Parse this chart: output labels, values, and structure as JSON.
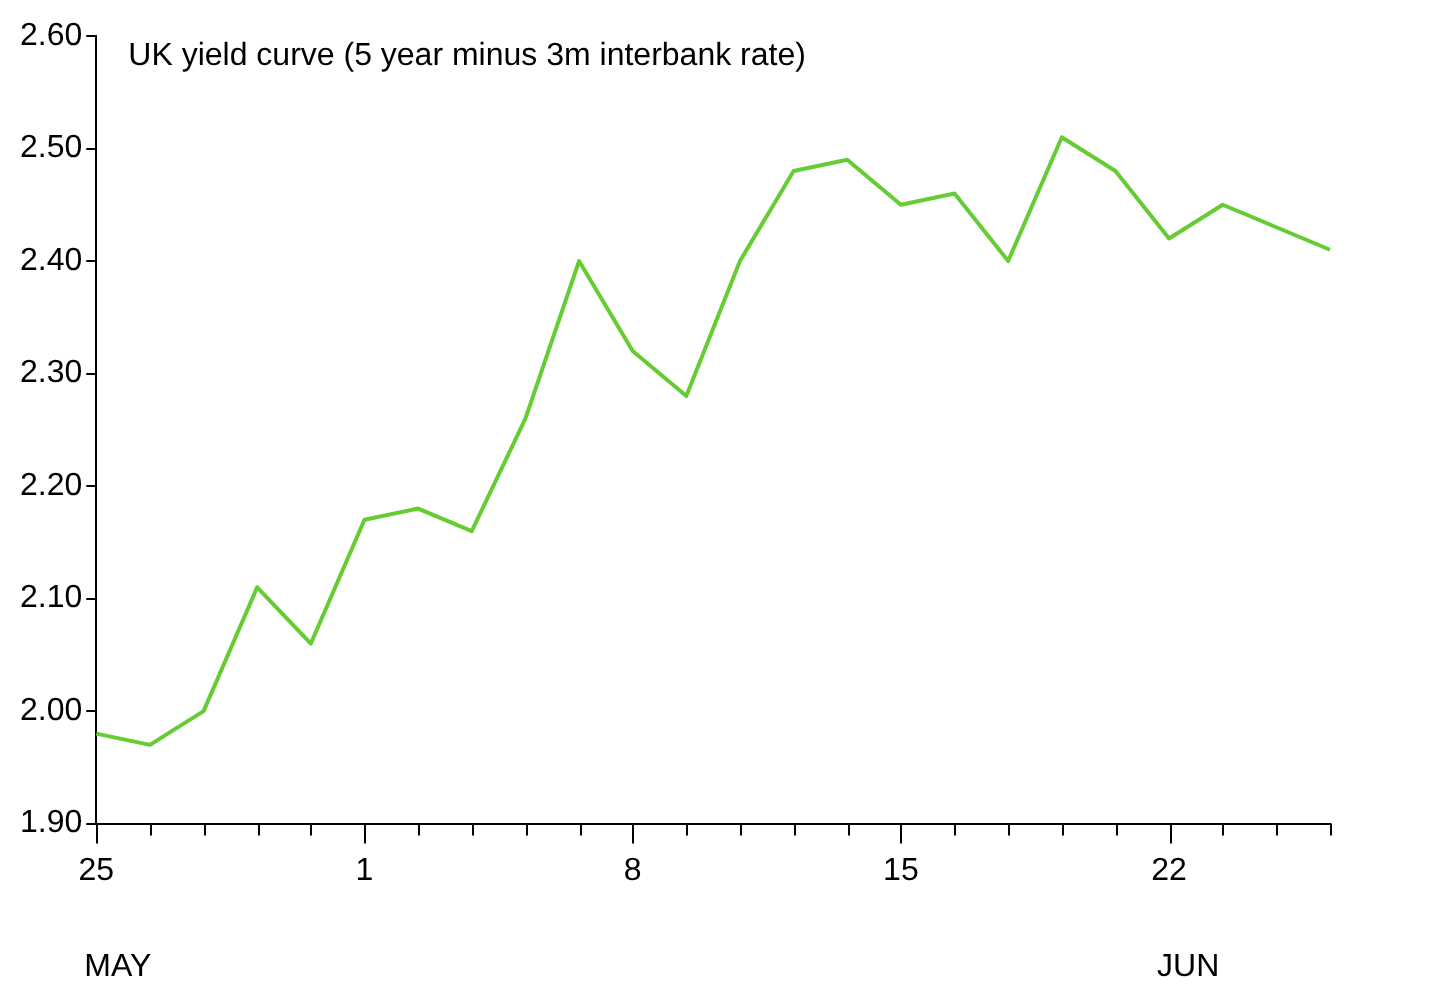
{
  "chart_data": {
    "type": "line",
    "title": "UK yield curve (5 year minus 3m interbank rate)",
    "categories": [
      "25",
      null,
      null,
      null,
      null,
      "1",
      null,
      null,
      null,
      null,
      "8",
      null,
      null,
      null,
      null,
      "15",
      null,
      null,
      null,
      null,
      "22",
      null,
      null,
      null
    ],
    "series": [
      {
        "color": "#66cc33",
        "values": [
          1.98,
          1.97,
          2.0,
          2.11,
          2.06,
          2.17,
          2.18,
          2.16,
          2.26,
          2.4,
          2.32,
          2.28,
          2.4,
          2.48,
          2.49,
          2.45,
          2.46,
          2.4,
          2.51,
          2.48,
          2.42,
          2.45,
          2.43,
          2.41
        ]
      }
    ],
    "ylim": [
      1.9,
      2.6
    ],
    "yticks": [
      {
        "value": 1.9,
        "label": "1.90"
      },
      {
        "value": 2.0,
        "label": "2.00"
      },
      {
        "value": 2.1,
        "label": "2.10"
      },
      {
        "value": 2.2,
        "label": "2.20"
      },
      {
        "value": 2.3,
        "label": "2.30"
      },
      {
        "value": 2.4,
        "label": "2.40"
      },
      {
        "value": 2.5,
        "label": "2.50"
      },
      {
        "value": 2.6,
        "label": "2.60"
      }
    ],
    "annotations": [
      "MAY",
      "JUN"
    ],
    "grid": false,
    "legend": false,
    "marker": "none",
    "line_style": "solid"
  }
}
